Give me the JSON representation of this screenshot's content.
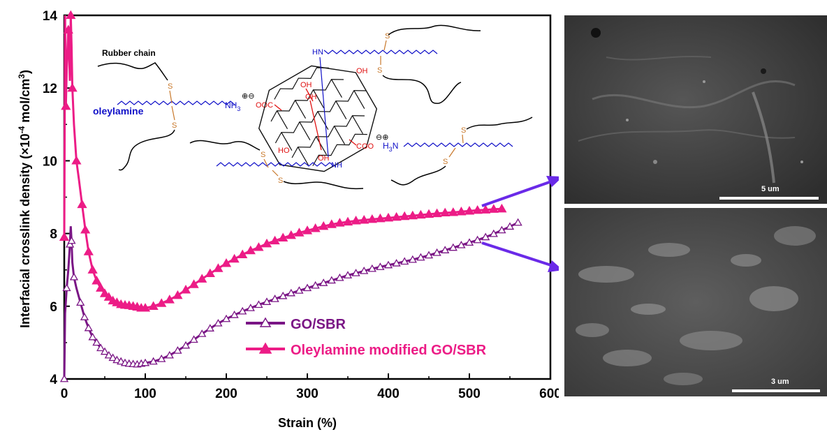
{
  "chart_data": {
    "type": "line",
    "xlabel": "Strain (%)",
    "ylabel": "Interfacial crosslink density (×10",
    "ylabel_exp": "-4",
    "ylabel_unit": " mol/cm",
    "ylabel_exp2": "3",
    "ylabel_close": ")",
    "xlim": [
      0,
      600
    ],
    "ylim": [
      4,
      14
    ],
    "xticks": [
      "0",
      "100",
      "200",
      "300",
      "400",
      "500",
      "600"
    ],
    "yticks": [
      "4",
      "6",
      "8",
      "10",
      "12",
      "14"
    ],
    "legend_position": "lower-right",
    "series": [
      {
        "name": "GO/SBR",
        "color": "#7a1585",
        "marker": "open-triangle",
        "x": [
          0,
          1,
          3,
          5,
          7,
          8,
          9,
          10,
          12,
          15,
          20,
          25,
          30,
          35,
          40,
          45,
          50,
          55,
          60,
          65,
          70,
          75,
          80,
          85,
          90,
          95,
          100,
          110,
          120,
          130,
          140,
          150,
          160,
          170,
          180,
          190,
          200,
          210,
          220,
          230,
          240,
          250,
          260,
          270,
          280,
          290,
          300,
          310,
          320,
          330,
          340,
          350,
          360,
          370,
          380,
          390,
          400,
          410,
          420,
          430,
          440,
          450,
          460,
          470,
          480,
          490,
          500,
          510,
          520,
          530,
          540,
          550,
          560
        ],
        "y": [
          4.0,
          5.8,
          6.5,
          7.0,
          7.7,
          8.2,
          7.8,
          7.2,
          6.8,
          6.5,
          6.1,
          5.7,
          5.4,
          5.15,
          5.0,
          4.85,
          4.75,
          4.65,
          4.58,
          4.52,
          4.48,
          4.44,
          4.42,
          4.41,
          4.4,
          4.42,
          4.44,
          4.48,
          4.55,
          4.65,
          4.78,
          4.92,
          5.08,
          5.24,
          5.39,
          5.53,
          5.65,
          5.76,
          5.86,
          5.95,
          6.04,
          6.12,
          6.2,
          6.28,
          6.36,
          6.43,
          6.5,
          6.57,
          6.64,
          6.71,
          6.78,
          6.85,
          6.91,
          6.97,
          7.03,
          7.08,
          7.13,
          7.18,
          7.23,
          7.28,
          7.34,
          7.4,
          7.47,
          7.54,
          7.61,
          7.68,
          7.75,
          7.82,
          7.9,
          7.99,
          8.09,
          8.19,
          8.3
        ]
      },
      {
        "name": "Oleylamine modified GO/SBR",
        "color": "#ec1c86",
        "marker": "filled-triangle",
        "x": [
          0,
          1,
          2,
          3,
          5,
          7,
          8,
          9,
          10,
          12,
          15,
          18,
          22,
          26,
          30,
          35,
          40,
          45,
          50,
          55,
          60,
          65,
          70,
          75,
          80,
          85,
          90,
          95,
          100,
          110,
          120,
          130,
          140,
          150,
          160,
          170,
          180,
          190,
          200,
          210,
          220,
          230,
          240,
          250,
          260,
          270,
          280,
          290,
          300,
          310,
          320,
          330,
          340,
          350,
          360,
          370,
          380,
          390,
          400,
          410,
          420,
          430,
          440,
          450,
          460,
          470,
          480,
          490,
          500,
          510,
          520,
          530,
          540
        ],
        "y": [
          7.9,
          14.0,
          11.5,
          12.5,
          13.6,
          12.2,
          14.0,
          13.2,
          12.0,
          11.0,
          10.0,
          9.5,
          8.8,
          8.1,
          7.5,
          7.0,
          6.7,
          6.5,
          6.35,
          6.25,
          6.15,
          6.1,
          6.05,
          6.03,
          6.02,
          6.0,
          5.98,
          5.95,
          5.95,
          6.0,
          6.08,
          6.18,
          6.3,
          6.45,
          6.6,
          6.75,
          6.9,
          7.04,
          7.18,
          7.3,
          7.42,
          7.53,
          7.62,
          7.72,
          7.8,
          7.88,
          7.95,
          8.02,
          8.08,
          8.14,
          8.2,
          8.25,
          8.29,
          8.32,
          8.35,
          8.37,
          8.39,
          8.41,
          8.43,
          8.45,
          8.47,
          8.49,
          8.51,
          8.53,
          8.55,
          8.57,
          8.58,
          8.6,
          8.62,
          8.64,
          8.65,
          8.67,
          8.68
        ]
      }
    ]
  },
  "schematic": {
    "rubber_chain_label": "Rubber chain",
    "oleylamine_label": "oleylamine",
    "nh3_label": "NH",
    "nh3_sub": "3",
    "plus_minus_1": "⊕⊖",
    "ooc_label": "OOC",
    "coo_label": "COO",
    "minus_plus_2": "⊖⊕",
    "h3n_label": "H",
    "h3n_sub": "3",
    "h3n_tail": "N",
    "hn_label": "HN",
    "nh_label": "NH",
    "oh_label": "OH",
    "ho_label": "HO",
    "s_label": "S"
  },
  "sem_images": {
    "top_scale": "5 um",
    "bottom_scale": "3 um"
  },
  "colors": {
    "go_sbr": "#7a1585",
    "oleyl_go_sbr": "#ec1c86",
    "arrow": "#6a2ae8",
    "chain_blue": "#1010c8",
    "sulfur": "#c8782a",
    "hydroxyl": "#e01010"
  }
}
